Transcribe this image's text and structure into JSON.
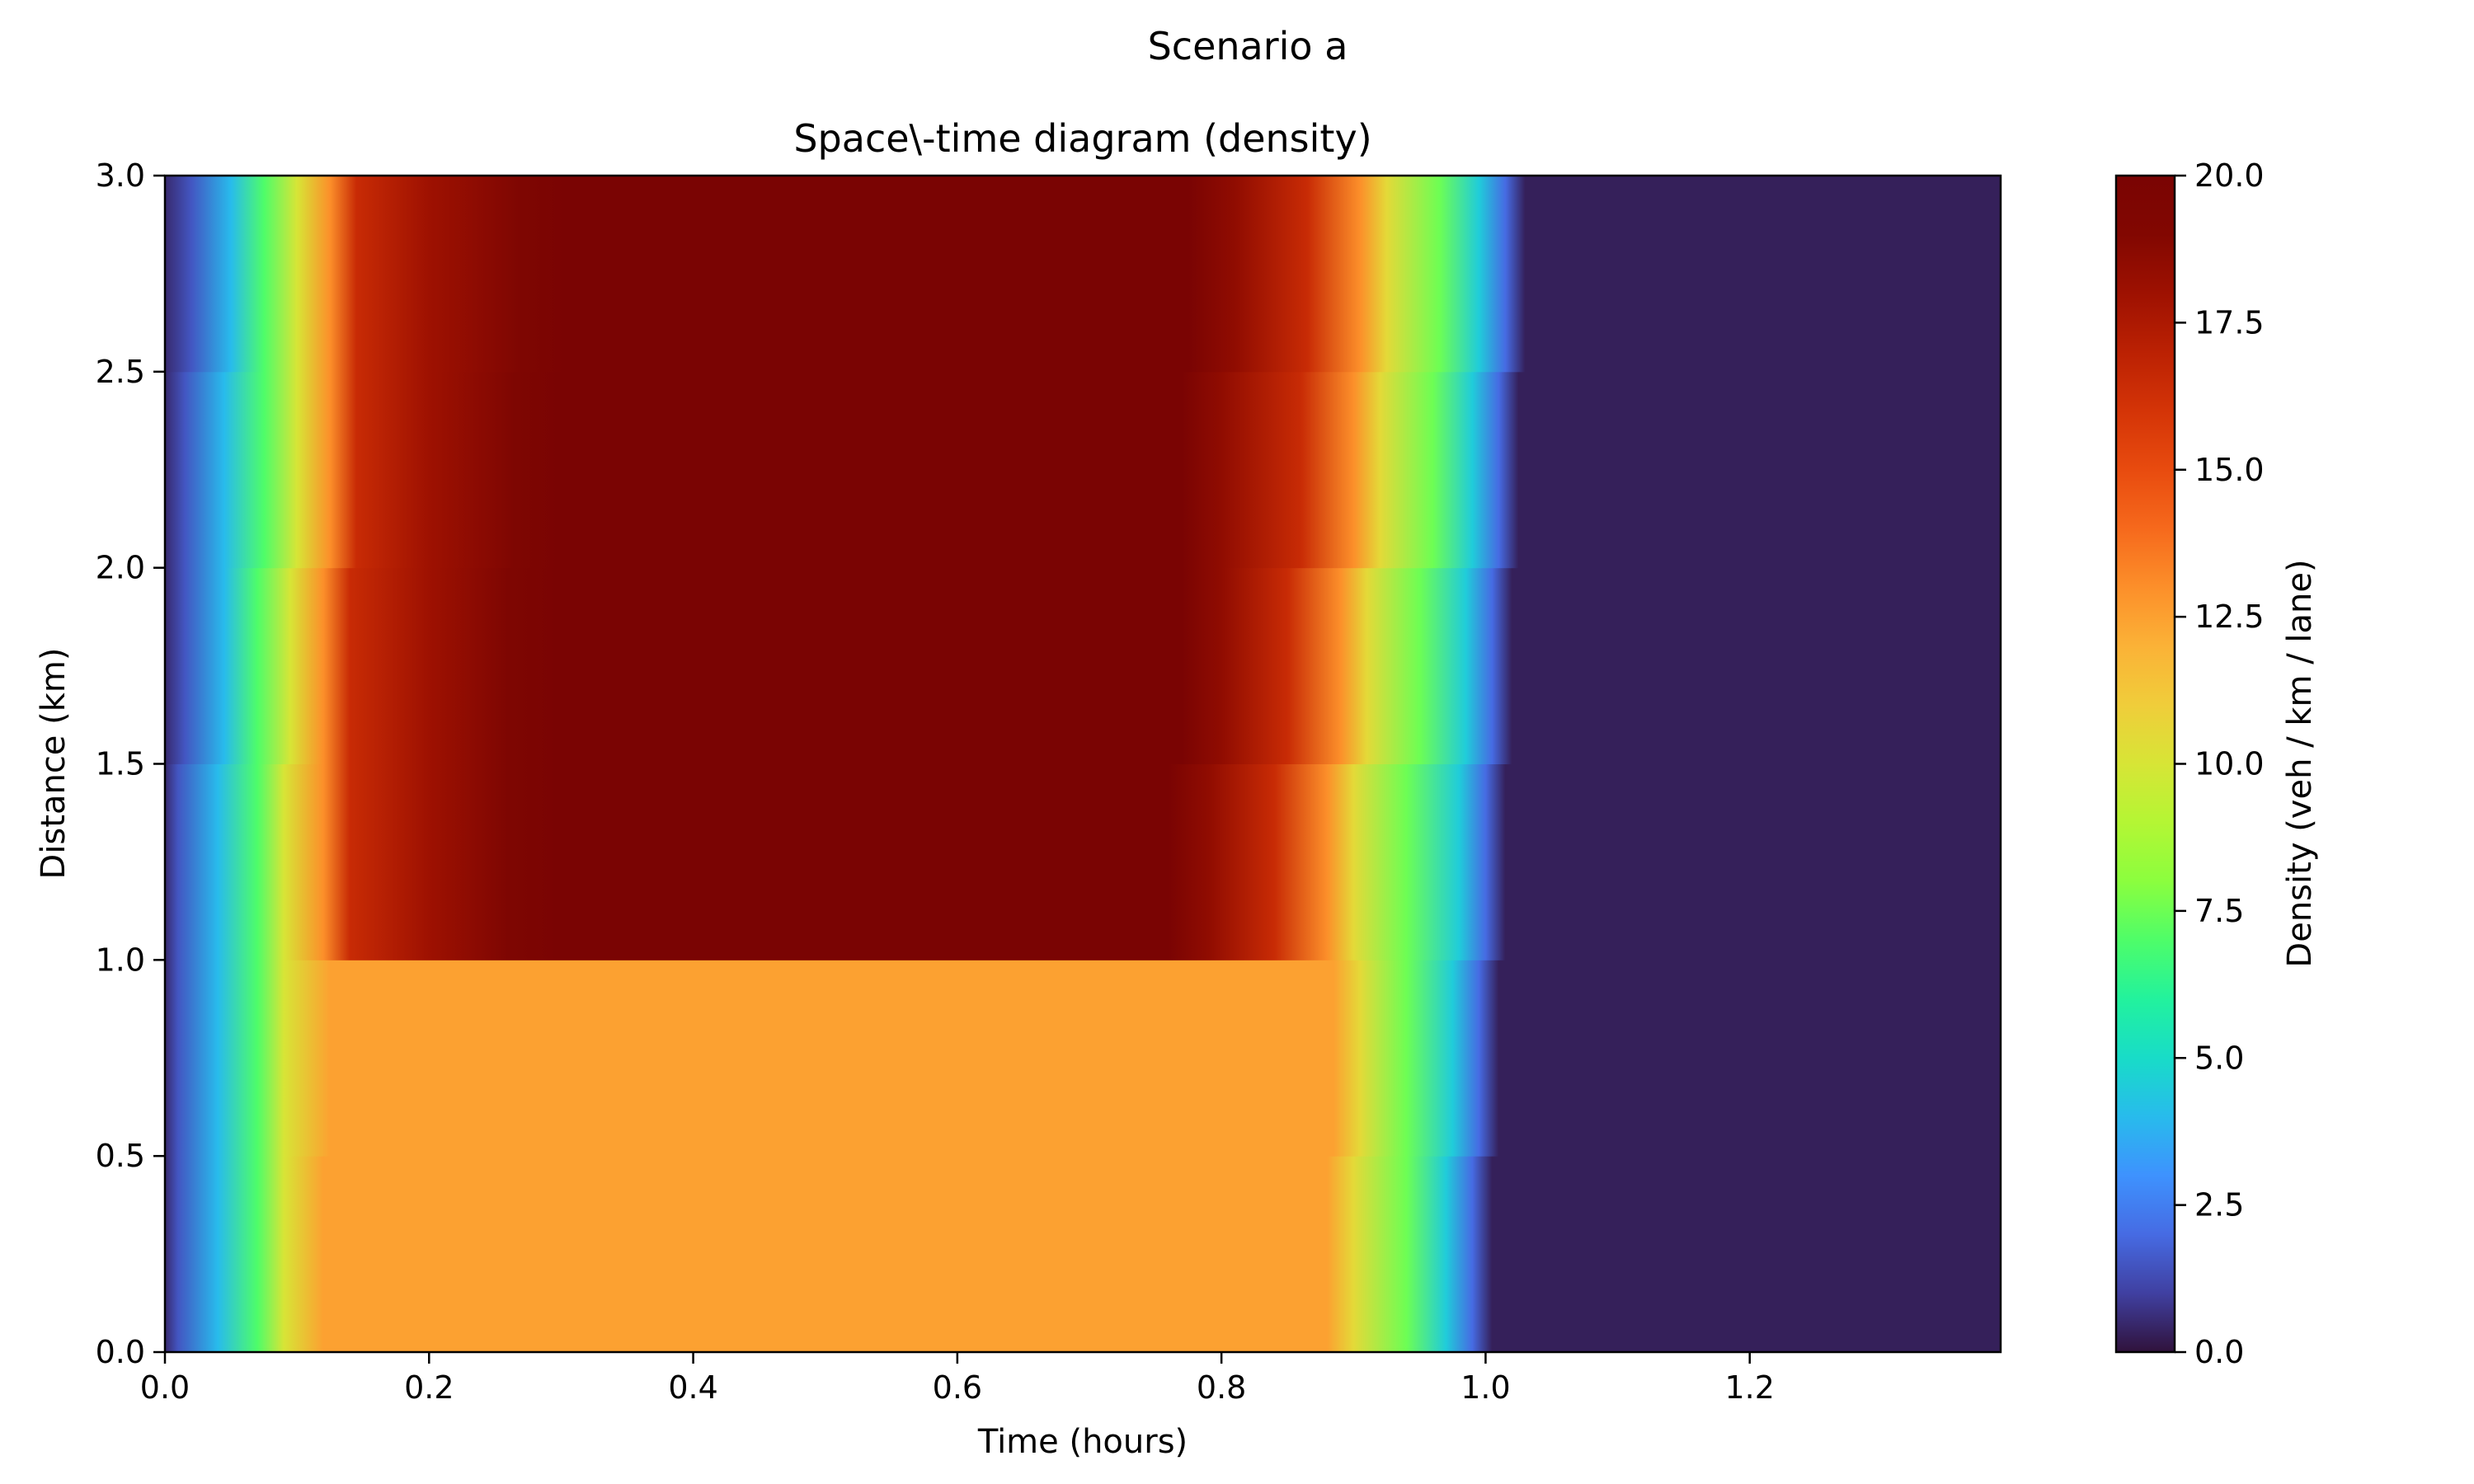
{
  "figure": {
    "suptitle": "Scenario a"
  },
  "chart_data": {
    "type": "heatmap",
    "title": "Space\\-time diagram (density)",
    "xlabel": "Time (hours)",
    "ylabel": "Distance (km)",
    "xlim": [
      0,
      1.39
    ],
    "ylim": [
      0,
      3.0
    ],
    "xticks": [
      "0.0",
      "0.2",
      "0.4",
      "0.6",
      "0.8",
      "1.0",
      "1.2"
    ],
    "yticks": [
      "0.0",
      "0.5",
      "1.0",
      "1.5",
      "2.0",
      "2.5",
      "3.0"
    ],
    "colorbar": {
      "label": "Density (veh / km / lane)",
      "range": [
        0,
        20
      ],
      "ticks": [
        "0.0",
        "2.5",
        "5.0",
        "7.5",
        "10.0",
        "12.5",
        "15.0",
        "17.5",
        "20.0"
      ],
      "colormap": "turbo"
    },
    "rows": [
      {
        "y0": 0.0,
        "y1": 0.5,
        "profile": [
          [
            0.0,
            0.5
          ],
          [
            0.01,
            1.5
          ],
          [
            0.04,
            4
          ],
          [
            0.07,
            7
          ],
          [
            0.09,
            10
          ],
          [
            0.12,
            12.5
          ],
          [
            0.88,
            12.5
          ],
          [
            0.9,
            10.5
          ],
          [
            0.94,
            7.5
          ],
          [
            0.97,
            4.5
          ],
          [
            0.99,
            2
          ],
          [
            1.005,
            0.3
          ],
          [
            1.39,
            0.3
          ]
        ]
      },
      {
        "y0": 0.5,
        "y1": 1.0,
        "profile": [
          [
            0.0,
            0.5
          ],
          [
            0.01,
            1.5
          ],
          [
            0.04,
            4
          ],
          [
            0.07,
            7
          ],
          [
            0.09,
            10
          ],
          [
            0.125,
            12.5
          ],
          [
            0.885,
            12.5
          ],
          [
            0.905,
            10.5
          ],
          [
            0.94,
            7.5
          ],
          [
            0.975,
            4.5
          ],
          [
            0.995,
            2
          ],
          [
            1.01,
            0.3
          ],
          [
            1.39,
            0.3
          ]
        ]
      },
      {
        "y0": 1.0,
        "y1": 1.5,
        "profile": [
          [
            0.0,
            0.5
          ],
          [
            0.01,
            1.5
          ],
          [
            0.04,
            4
          ],
          [
            0.07,
            7
          ],
          [
            0.09,
            10
          ],
          [
            0.12,
            13
          ],
          [
            0.14,
            16.5
          ],
          [
            0.2,
            18
          ],
          [
            0.26,
            19.5
          ],
          [
            0.3,
            20
          ],
          [
            0.76,
            20
          ],
          [
            0.79,
            18.5
          ],
          [
            0.84,
            16.5
          ],
          [
            0.88,
            13
          ],
          [
            0.9,
            10.5
          ],
          [
            0.94,
            7.5
          ],
          [
            0.98,
            4.5
          ],
          [
            1.0,
            2
          ],
          [
            1.015,
            0.3
          ],
          [
            1.39,
            0.3
          ]
        ]
      },
      {
        "y0": 1.5,
        "y1": 2.0,
        "profile": [
          [
            0.0,
            0.5
          ],
          [
            0.015,
            1.5
          ],
          [
            0.045,
            4
          ],
          [
            0.07,
            7
          ],
          [
            0.095,
            10
          ],
          [
            0.12,
            13
          ],
          [
            0.14,
            16.5
          ],
          [
            0.2,
            18
          ],
          [
            0.26,
            19.5
          ],
          [
            0.3,
            20
          ],
          [
            0.77,
            20
          ],
          [
            0.8,
            18.5
          ],
          [
            0.85,
            16.5
          ],
          [
            0.89,
            13
          ],
          [
            0.91,
            10.5
          ],
          [
            0.95,
            7.5
          ],
          [
            0.985,
            4.5
          ],
          [
            1.005,
            2
          ],
          [
            1.02,
            0.3
          ],
          [
            1.39,
            0.3
          ]
        ]
      },
      {
        "y0": 2.0,
        "y1": 2.5,
        "profile": [
          [
            0.0,
            0.5
          ],
          [
            0.015,
            1.5
          ],
          [
            0.045,
            4
          ],
          [
            0.075,
            7
          ],
          [
            0.1,
            10
          ],
          [
            0.125,
            13
          ],
          [
            0.145,
            16.5
          ],
          [
            0.2,
            18
          ],
          [
            0.265,
            19.5
          ],
          [
            0.3,
            20
          ],
          [
            0.77,
            20
          ],
          [
            0.8,
            18.5
          ],
          [
            0.86,
            16.5
          ],
          [
            0.9,
            13
          ],
          [
            0.92,
            10.5
          ],
          [
            0.96,
            7.5
          ],
          [
            0.99,
            4.5
          ],
          [
            1.01,
            2
          ],
          [
            1.025,
            0.3
          ],
          [
            1.39,
            0.3
          ]
        ]
      },
      {
        "y0": 2.5,
        "y1": 3.0,
        "profile": [
          [
            0.0,
            0.5
          ],
          [
            0.02,
            1.5
          ],
          [
            0.05,
            4
          ],
          [
            0.075,
            7
          ],
          [
            0.1,
            10
          ],
          [
            0.125,
            13
          ],
          [
            0.145,
            16.5
          ],
          [
            0.2,
            18
          ],
          [
            0.27,
            19.5
          ],
          [
            0.305,
            20
          ],
          [
            0.775,
            20
          ],
          [
            0.81,
            18.5
          ],
          [
            0.865,
            16.5
          ],
          [
            0.905,
            13
          ],
          [
            0.925,
            10.5
          ],
          [
            0.965,
            7.5
          ],
          [
            0.995,
            4.5
          ],
          [
            1.015,
            2
          ],
          [
            1.03,
            0.3
          ],
          [
            1.39,
            0.3
          ]
        ]
      }
    ]
  }
}
